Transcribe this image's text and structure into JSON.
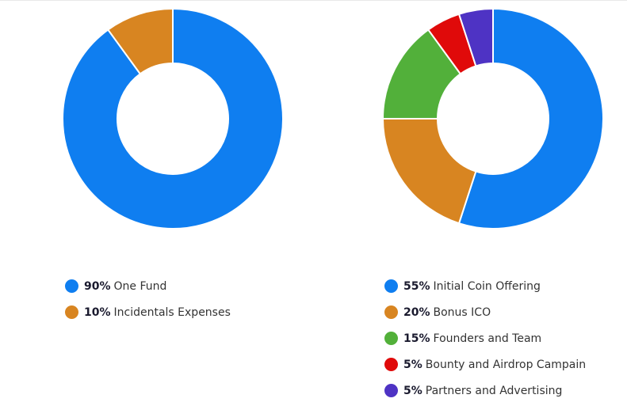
{
  "chart_data": [
    {
      "type": "pie",
      "style": "donut",
      "categories": [
        "One Fund",
        "Incidentals Expenses"
      ],
      "values": [
        90,
        10
      ],
      "percent_labels": [
        "90%",
        "10%"
      ],
      "colors": [
        "#0f7ef0",
        "#d88521"
      ],
      "legend_placement": "bottom"
    },
    {
      "type": "pie",
      "style": "donut",
      "categories": [
        "Initial Coin Offering",
        "Bonus ICO",
        "Founders and Team",
        "Bounty and Airdrop Campain",
        "Partners and Advertising"
      ],
      "values": [
        55,
        20,
        15,
        5,
        5
      ],
      "percent_labels": [
        "55%",
        "20%",
        "15%",
        "5%",
        "5%"
      ],
      "colors": [
        "#0f7ef0",
        "#d88521",
        "#52b03a",
        "#e00a0a",
        "#4e33c4"
      ],
      "legend_placement": "bottom"
    }
  ]
}
